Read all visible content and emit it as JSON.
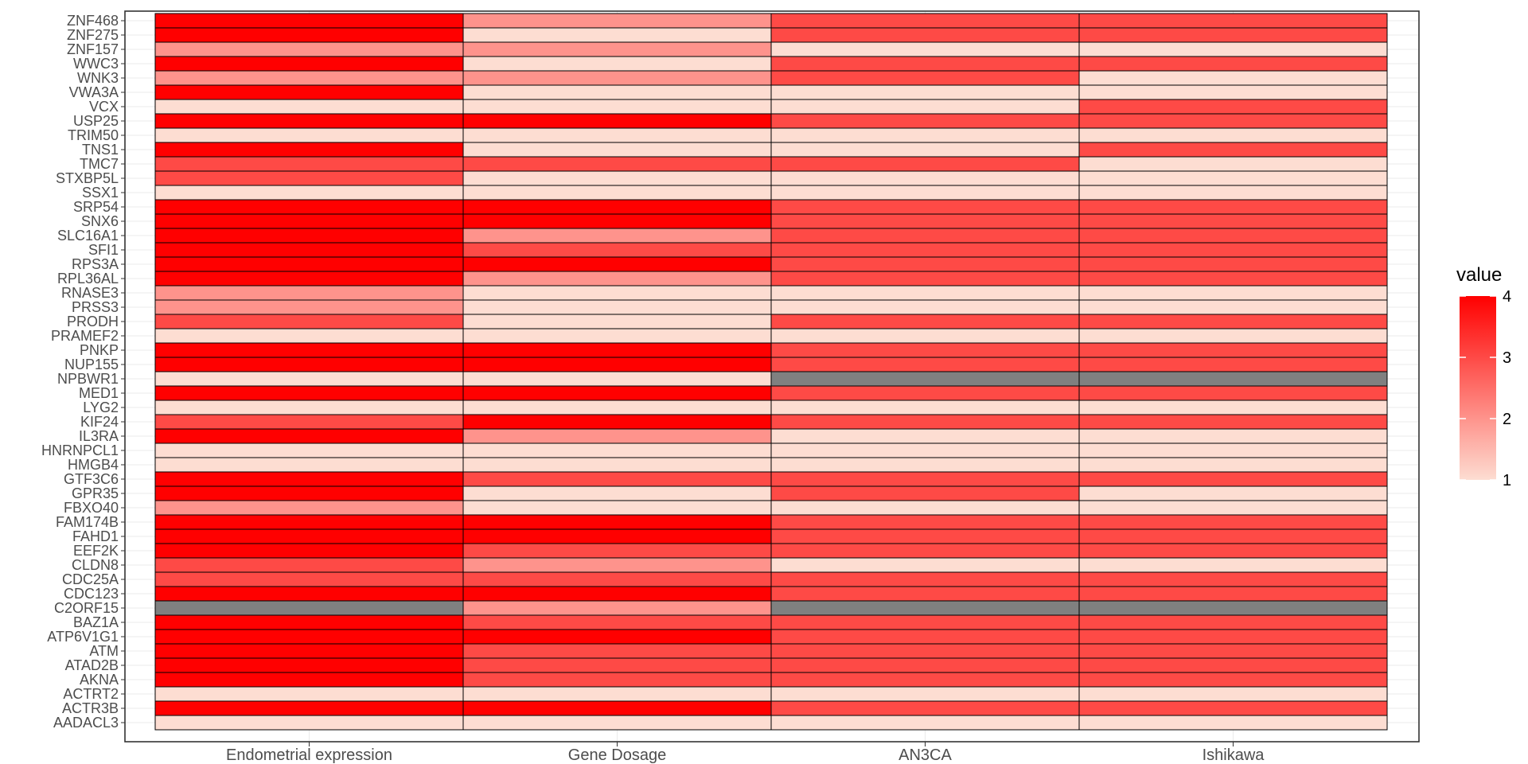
{
  "chart_data": {
    "type": "heatmap",
    "categories": [
      "Endometrial expression",
      "Gene Dosage",
      "AN3CA",
      "Ishikawa"
    ],
    "genes": [
      "ZNF468",
      "ZNF275",
      "ZNF157",
      "WWC3",
      "WNK3",
      "VWA3A",
      "VCX",
      "USP25",
      "TRIM50",
      "TNS1",
      "TMC7",
      "STXBP5L",
      "SSX1",
      "SRP54",
      "SNX6",
      "SLC16A1",
      "SFI1",
      "RPS3A",
      "RPL36AL",
      "RNASE3",
      "PRSS3",
      "PRODH",
      "PRAMEF2",
      "PNKP",
      "NUP155",
      "NPBWR1",
      "MED1",
      "LYG2",
      "KIF24",
      "IL3RA",
      "HNRNPCL1",
      "HMGB4",
      "GTF3C6",
      "GPR35",
      "FBXO40",
      "FAM174B",
      "FAHD1",
      "EEF2K",
      "CLDN8",
      "CDC25A",
      "CDC123",
      "C2ORF15",
      "BAZ1A",
      "ATP6V1G1",
      "ATM",
      "ATAD2B",
      "AKNA",
      "ACTRT2",
      "ACTR3B",
      "AADACL3"
    ],
    "values": [
      [
        4,
        2,
        3,
        3
      ],
      [
        4,
        1,
        3,
        3
      ],
      [
        2,
        2,
        1,
        1
      ],
      [
        4,
        1,
        3,
        3
      ],
      [
        2,
        2,
        3,
        1
      ],
      [
        4,
        1,
        1,
        1
      ],
      [
        1,
        1,
        1,
        3
      ],
      [
        4,
        4,
        3,
        3
      ],
      [
        1,
        1,
        1,
        1
      ],
      [
        4,
        1,
        1,
        3
      ],
      [
        3,
        3,
        3,
        1
      ],
      [
        3,
        1,
        1,
        1
      ],
      [
        1,
        1,
        1,
        1
      ],
      [
        4,
        4,
        3,
        3
      ],
      [
        4,
        4,
        3,
        3
      ],
      [
        4,
        2,
        3,
        3
      ],
      [
        4,
        3,
        3,
        3
      ],
      [
        4,
        4,
        3,
        3
      ],
      [
        4,
        2,
        3,
        3
      ],
      [
        2,
        1,
        1,
        1
      ],
      [
        2,
        1,
        1,
        1
      ],
      [
        3,
        1,
        3,
        3
      ],
      [
        1,
        1,
        1,
        1
      ],
      [
        4,
        4,
        3,
        3
      ],
      [
        4,
        4,
        3,
        3
      ],
      [
        1,
        1,
        null,
        null
      ],
      [
        4,
        4,
        3,
        3
      ],
      [
        1,
        1,
        1,
        1
      ],
      [
        3,
        4,
        3,
        3
      ],
      [
        4,
        2,
        1,
        1
      ],
      [
        1,
        1,
        1,
        1
      ],
      [
        1,
        1,
        1,
        1
      ],
      [
        4,
        3,
        3,
        3
      ],
      [
        4,
        1,
        3,
        1
      ],
      [
        2,
        1,
        1,
        1
      ],
      [
        4,
        4,
        3,
        3
      ],
      [
        4,
        4,
        3,
        3
      ],
      [
        4,
        3,
        3,
        3
      ],
      [
        3,
        2,
        1,
        1
      ],
      [
        3,
        3,
        3,
        3
      ],
      [
        4,
        4,
        3,
        3
      ],
      [
        null,
        2,
        null,
        null
      ],
      [
        4,
        3,
        3,
        3
      ],
      [
        4,
        4,
        3,
        3
      ],
      [
        4,
        3,
        3,
        3
      ],
      [
        4,
        3,
        3,
        3
      ],
      [
        4,
        3,
        3,
        3
      ],
      [
        1,
        1,
        1,
        1
      ],
      [
        4,
        4,
        3,
        3
      ],
      [
        1,
        1,
        1,
        1
      ]
    ],
    "na_color": "#808080",
    "colors": {
      "low": "#FDDDD2",
      "high": "#FF0000"
    },
    "legend": {
      "title": "value",
      "ticks": [
        1,
        2,
        3,
        4
      ],
      "range": [
        1,
        4
      ],
      "position": "right"
    },
    "grid": true,
    "title": "",
    "xlabel": "",
    "ylabel": ""
  }
}
